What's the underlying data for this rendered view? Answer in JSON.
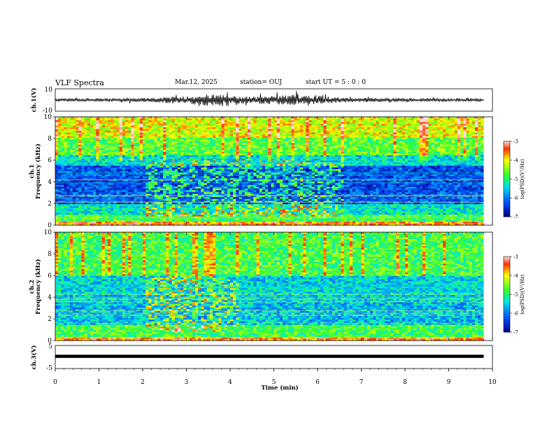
{
  "header": {
    "title": "VLF Spectra",
    "date": "Mar.12, 2025",
    "station": "station= OUJ",
    "start": "start  UT =  5 : 0 : 0"
  },
  "chart_data": [
    {
      "type": "line",
      "name": "ch1-waveform",
      "ylabel": "ch.1(V)",
      "ylim": [
        -10,
        10
      ],
      "yticks": [
        "10",
        "-10"
      ],
      "xlim": [
        0,
        10
      ],
      "amplitude_profile": [
        {
          "t": 0.0,
          "amp": 1.0
        },
        {
          "t": 1.5,
          "amp": 1.2
        },
        {
          "t": 2.4,
          "amp": 2.0
        },
        {
          "t": 3.0,
          "amp": 3.0
        },
        {
          "t": 3.5,
          "amp": 4.5
        },
        {
          "t": 4.5,
          "amp": 2.5
        },
        {
          "t": 5.8,
          "amp": 4.5
        },
        {
          "t": 6.5,
          "amp": 1.8
        },
        {
          "t": 8.0,
          "amp": 1.3
        },
        {
          "t": 9.8,
          "amp": 1.0
        }
      ]
    },
    {
      "type": "heatmap",
      "name": "ch1-spectrogram",
      "ylabel": "ch.1\nFrequency (kHz)",
      "ylabel_top": "ch.1",
      "ylabel_bottom": "Frequency (kHz)",
      "xlim": [
        0,
        10
      ],
      "ylim": [
        0,
        10
      ],
      "yticks": [
        "0",
        "2",
        "4",
        "6",
        "8",
        "10"
      ],
      "colorbar": {
        "label": "log(PSD)(V²/Hz)",
        "range": [
          -7,
          -3
        ],
        "ticks": [
          "-3",
          "-4",
          "-5",
          "-6",
          "-7"
        ]
      },
      "bands": [
        {
          "f0": 0.0,
          "f1": 0.3,
          "level": 0.85
        },
        {
          "f0": 0.3,
          "f1": 1.0,
          "level": 0.55
        },
        {
          "f0": 1.0,
          "f1": 2.0,
          "level": 0.42
        },
        {
          "f0": 2.0,
          "f1": 3.0,
          "level": 0.2
        },
        {
          "f0": 3.0,
          "f1": 5.5,
          "level": 0.18
        },
        {
          "f0": 5.5,
          "f1": 6.5,
          "level": 0.4
        },
        {
          "f0": 6.5,
          "f1": 8.0,
          "level": 0.58
        },
        {
          "f0": 8.0,
          "f1": 10.0,
          "level": 0.72
        }
      ],
      "enhanced_interval": [
        2.05,
        6.6
      ]
    },
    {
      "type": "heatmap",
      "name": "ch2-spectrogram",
      "ylabel_top": "ch.2",
      "ylabel_bottom": "Frequency (kHz)",
      "xlim": [
        0,
        10
      ],
      "ylim": [
        0,
        10
      ],
      "yticks": [
        "0",
        "2",
        "4",
        "6",
        "8",
        "10"
      ],
      "colorbar": {
        "label": "log(PSD)(V²/Hz)",
        "range": [
          -7,
          -3
        ],
        "ticks": [
          "-3",
          "-4",
          "-5",
          "-6",
          "-7"
        ]
      },
      "bands": [
        {
          "f0": 0.0,
          "f1": 0.3,
          "level": 0.85
        },
        {
          "f0": 0.3,
          "f1": 1.5,
          "level": 0.55
        },
        {
          "f0": 1.5,
          "f1": 3.5,
          "level": 0.35
        },
        {
          "f0": 3.5,
          "f1": 6.0,
          "level": 0.38
        },
        {
          "f0": 6.0,
          "f1": 10.0,
          "level": 0.55
        }
      ],
      "enhanced_interval": [
        2.05,
        4.2
      ]
    },
    {
      "type": "line",
      "name": "ch3-signal",
      "ylabel": "ch.3(V)",
      "ylim": [
        -5,
        5
      ],
      "yticks": [
        "5",
        "-5"
      ],
      "xlim": [
        0,
        10
      ],
      "xlabel": "Time (min)",
      "xticks": [
        "0",
        "1",
        "2",
        "3",
        "4",
        "5",
        "6",
        "7",
        "8",
        "9",
        "10"
      ],
      "constant_value": 0.3,
      "data_end_t": 9.8
    }
  ]
}
